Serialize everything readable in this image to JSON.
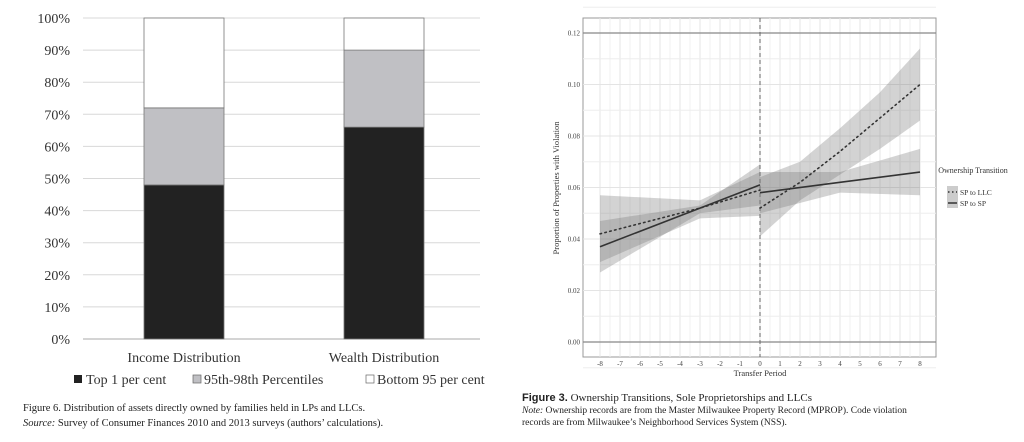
{
  "chart_data": [
    {
      "type": "bar",
      "stacked": true,
      "categories": [
        "Income Distribution",
        "Wealth Distribution"
      ],
      "series": [
        {
          "name": "Top 1 per cent",
          "values": [
            48,
            66
          ],
          "color": "#222222"
        },
        {
          "name": "95th-98th Percentiles",
          "values": [
            24,
            24
          ],
          "color": "#c0c0c4"
        },
        {
          "name": "Bottom 95 per cent",
          "values": [
            28,
            10
          ],
          "color": "#ffffff"
        }
      ],
      "yticks": [
        "0%",
        "10%",
        "20%",
        "30%",
        "40%",
        "50%",
        "60%",
        "70%",
        "80%",
        "90%",
        "100%"
      ],
      "ylim": [
        0,
        100
      ],
      "grid": true,
      "legend_position": "bottom",
      "caption": {
        "title": "Figure 6.   Distribution of assets directly owned by families held in LPs and LLCs.",
        "source_label": "Source:",
        "source": " Survey of Consumer Finances 2010 and 2013 surveys (authors’ calculations)."
      }
    },
    {
      "type": "line",
      "xlabel": "Transfer Period",
      "ylabel": "Proportion of Properties with Violation",
      "xlim": [
        -8,
        8
      ],
      "ylim": [
        0,
        0.12
      ],
      "xticks": [
        "-8",
        "-7",
        "-6",
        "-5",
        "-4",
        "-3",
        "-2",
        "-1",
        "0",
        "1",
        "2",
        "3",
        "4",
        "5",
        "6",
        "7",
        "8"
      ],
      "yticks": [
        "0.00",
        "0.02",
        "0.04",
        "0.06",
        "0.08",
        "0.10",
        "0.12"
      ],
      "grid": true,
      "vline_x": 0,
      "legend_title": "Ownership Transition",
      "legend_position": "right",
      "series": [
        {
          "name": "SP to LLC",
          "style": "dotted",
          "segments": [
            {
              "x": [
                -8,
                -3,
                0
              ],
              "y": [
                0.042,
                0.052,
                0.059
              ],
              "lower": [
                0.031,
                0.048,
                0.049
              ],
              "upper": [
                0.057,
                0.055,
                0.066
              ]
            },
            {
              "x": [
                0,
                2,
                4,
                6,
                8
              ],
              "y": [
                0.052,
                0.062,
                0.074,
                0.087,
                0.1
              ],
              "lower": [
                0.041,
                0.055,
                0.065,
                0.075,
                0.086
              ],
              "upper": [
                0.064,
                0.07,
                0.083,
                0.097,
                0.114
              ]
            }
          ]
        },
        {
          "name": "SP to SP",
          "style": "solid",
          "segments": [
            {
              "x": [
                -8,
                -3,
                0
              ],
              "y": [
                0.037,
                0.052,
                0.061
              ],
              "lower": [
                0.027,
                0.05,
                0.053
              ],
              "upper": [
                0.047,
                0.053,
                0.069
              ]
            },
            {
              "x": [
                0,
                4,
                8
              ],
              "y": [
                0.058,
                0.062,
                0.066
              ],
              "lower": [
                0.05,
                0.058,
                0.057
              ],
              "upper": [
                0.066,
                0.066,
                0.075
              ]
            }
          ]
        }
      ],
      "caption": {
        "title_bold": "Figure 3.",
        "title": " Ownership Transitions, Sole Proprietorships and LLCs",
        "note_label": "Note:",
        "note_line1": " Ownership records are from the Master Milwaukee Property Record (MPROP). Code violation",
        "note_line2": "records are from Milwaukee’s Neighborhood Services System (NSS)."
      }
    }
  ]
}
